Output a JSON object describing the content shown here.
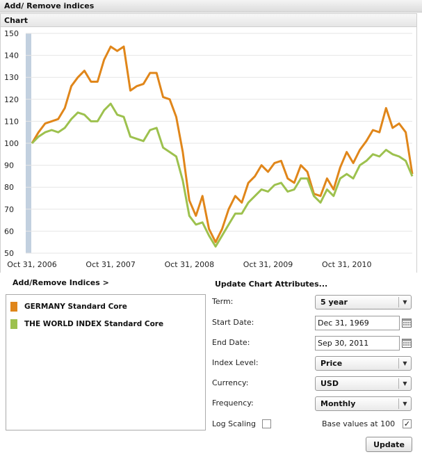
{
  "window": {
    "title": "Add/ Remove indices"
  },
  "chart_section": {
    "title": "Chart"
  },
  "indices_link": {
    "label": "Add/Remove Indices >"
  },
  "legend": {
    "items": [
      {
        "label": "GERMANY Standard Core",
        "color": "#e0861a"
      },
      {
        "label": "THE WORLD INDEX Standard Core",
        "color": "#9dc14e"
      }
    ]
  },
  "attributes": {
    "title": "Update Chart Attributes...",
    "term": {
      "label": "Term:",
      "value": "5 year"
    },
    "start_date": {
      "label": "Start Date:",
      "value": "Dec 31, 1969"
    },
    "end_date": {
      "label": "End Date:",
      "value": "Sep 30, 2011"
    },
    "index_level": {
      "label": "Index Level:",
      "value": "Price"
    },
    "currency": {
      "label": "Currency:",
      "value": "USD"
    },
    "frequency": {
      "label": "Frequency:",
      "value": "Monthly"
    },
    "log_scaling": {
      "label": "Log Scaling",
      "checked": false
    },
    "base_values": {
      "label": "Base values at 100",
      "checked": true
    },
    "update_label": "Update"
  },
  "chart_data": {
    "type": "line",
    "title": "",
    "xlabel": "",
    "ylabel": "",
    "ylim": [
      50,
      150
    ],
    "yticks": [
      50,
      60,
      70,
      80,
      90,
      100,
      110,
      120,
      130,
      140,
      150
    ],
    "x_tick_labels": [
      "Oct 31, 2006",
      "Oct 31, 2007",
      "Oct 31, 2008",
      "Oct 31, 2009",
      "Oct 31, 2010"
    ],
    "x_start": "Oct 31, 2006",
    "x_end": "Sep 30, 2011",
    "grid": true,
    "series": [
      {
        "name": "GERMANY Standard Core",
        "color": "#e0861a",
        "values": [
          100,
          105,
          109,
          110,
          111,
          116,
          126,
          130,
          133,
          128,
          128,
          138,
          144,
          142,
          144,
          124,
          126,
          127,
          132,
          132,
          121,
          120,
          112,
          96,
          74,
          67,
          76,
          61,
          55,
          61,
          70,
          76,
          73,
          82,
          85,
          90,
          87,
          91,
          92,
          84,
          82,
          90,
          87,
          77,
          76,
          84,
          79,
          89,
          96,
          91,
          97,
          101,
          106,
          105,
          116,
          107,
          109,
          105,
          86
        ]
      },
      {
        "name": "THE WORLD INDEX Standard Core",
        "color": "#9dc14e",
        "values": [
          100,
          103,
          105,
          106,
          105,
          107,
          111,
          114,
          113,
          110,
          110,
          115,
          118,
          113,
          112,
          103,
          102,
          101,
          106,
          107,
          98,
          96,
          94,
          83,
          67,
          63,
          64,
          58,
          53,
          58,
          63,
          68,
          68,
          73,
          76,
          79,
          78,
          81,
          82,
          78,
          79,
          84,
          84,
          76,
          73,
          79,
          76,
          84,
          86,
          84,
          90,
          92,
          95,
          94,
          97,
          95,
          94,
          92,
          85
        ]
      }
    ]
  }
}
